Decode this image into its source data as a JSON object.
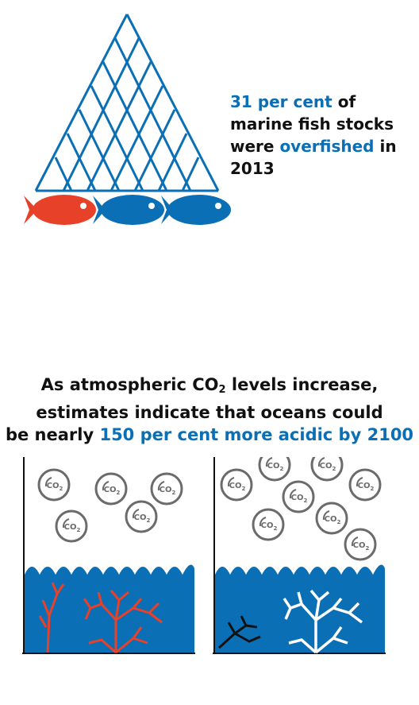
{
  "fish_fact": {
    "highlight_1": "31 per cent",
    "text_1": " of marine fish stocks were ",
    "highlight_2": "overfished",
    "text_2": " in 2013"
  },
  "acid_fact": {
    "line1_a": "As atmospheric CO",
    "line1_sub": "2",
    "line1_b": " levels increase,",
    "line2": "estimates indicate that oceans could",
    "line3_a": "be nearly ",
    "line3_highlight": "150 per cent more acidic by 2100"
  },
  "bubble_label": "CO",
  "bubble_sub": "2",
  "colors": {
    "blue": "#0a6fb5",
    "red": "#e8412a",
    "dark": "#111111"
  },
  "icons": [
    "fishing-net-icon",
    "red-fish-icon",
    "blue-fish-icon",
    "co2-bubble-icon",
    "coral-icon",
    "wave-icon"
  ]
}
